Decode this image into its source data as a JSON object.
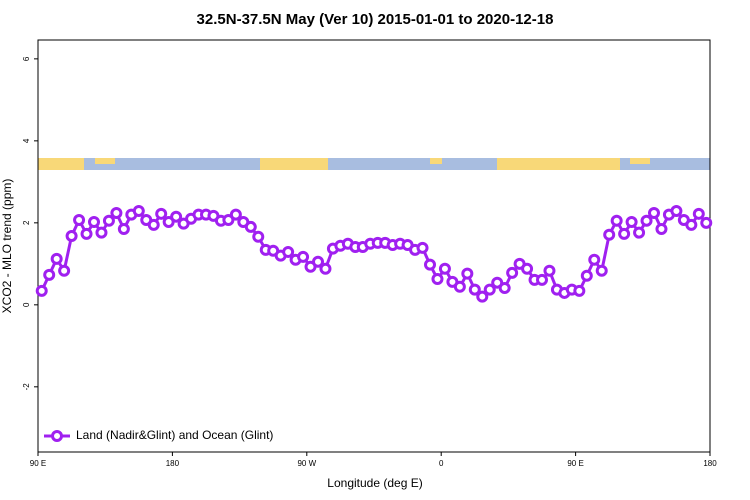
{
  "chart_data": {
    "type": "line",
    "title": "32.5N-37.5N May (Ver 10)   2015-01-01 to 2020-12-18",
    "x_label": "Longitude (deg E)",
    "y_label": "XCO2 - MLO trend (ppm)",
    "x": [
      92.5,
      97.5,
      102.5,
      107.5,
      112.5,
      117.5,
      122.5,
      127.5,
      132.5,
      137.5,
      142.5,
      147.5,
      152.5,
      157.5,
      162.5,
      167.5,
      172.5,
      177.5,
      182.5,
      187.5,
      192.5,
      197.5,
      202.5,
      207.5,
      212.5,
      217.5,
      222.5,
      227.5,
      232.5,
      237.5,
      242.5,
      247.5,
      252.5,
      257.5,
      262.5,
      267.5,
      272.5,
      277.5,
      282.5,
      287.5,
      292.5,
      297.5,
      302.5,
      307.5,
      312.5,
      317.5,
      322.5,
      327.5,
      332.5,
      337.5,
      342.5,
      347.5,
      352.5,
      357.5,
      362.5,
      367.5,
      372.5,
      377.5,
      382.5,
      387.5,
      392.5,
      397.5,
      402.5,
      407.5,
      412.5,
      417.5,
      422.5,
      427.5,
      432.5,
      437.5,
      442.5,
      447.5,
      452.5,
      457.5,
      462.5,
      467.5,
      472.5,
      477.5,
      482.5,
      487.5,
      492.5,
      497.5,
      502.5,
      507.5,
      512.5,
      517.5,
      522.5,
      527.5,
      532.5,
      537.5
    ],
    "series": [
      {
        "name": "Land (Nadir&Glint) and Ocean (Glint)",
        "color": "#a020f0",
        "values": [
          0.34,
          0.73,
          1.12,
          0.83,
          1.68,
          2.07,
          1.73,
          2.02,
          1.76,
          2.05,
          2.24,
          1.85,
          2.2,
          2.29,
          2.07,
          1.95,
          2.22,
          2.02,
          2.15,
          1.98,
          2.1,
          2.2,
          2.2,
          2.17,
          2.05,
          2.07,
          2.2,
          2.02,
          1.9,
          1.66,
          1.34,
          1.32,
          1.2,
          1.29,
          1.1,
          1.17,
          0.93,
          1.05,
          0.88,
          1.37,
          1.44,
          1.49,
          1.41,
          1.41,
          1.49,
          1.51,
          1.51,
          1.46,
          1.49,
          1.46,
          1.34,
          1.39,
          0.98,
          0.63,
          0.88,
          0.56,
          0.44,
          0.76,
          0.37,
          0.2,
          0.37,
          0.54,
          0.41,
          0.78,
          1.0,
          0.88,
          0.61,
          0.61,
          0.83,
          0.37,
          0.29,
          0.37,
          0.34,
          0.71,
          1.1,
          0.83,
          1.71,
          2.05,
          1.73,
          2.02,
          1.76,
          2.05,
          2.24,
          1.85,
          2.2,
          2.29,
          2.07,
          1.95,
          2.22,
          2.0
        ]
      }
    ],
    "xlim": [
      90,
      540
    ],
    "xticks": [
      {
        "value": 90,
        "label": "90 E"
      },
      180,
      {
        "value": 270,
        "label": "90 W"
      },
      {
        "value": 360,
        "label": "0"
      },
      {
        "value": 450,
        "label": "90 E"
      },
      {
        "value": 540,
        "label": "180"
      }
    ],
    "ylim": [
      -3.59,
      6.46
    ],
    "yticks": [
      -2,
      0,
      2,
      4,
      6
    ],
    "legend": "bottom-left"
  }
}
